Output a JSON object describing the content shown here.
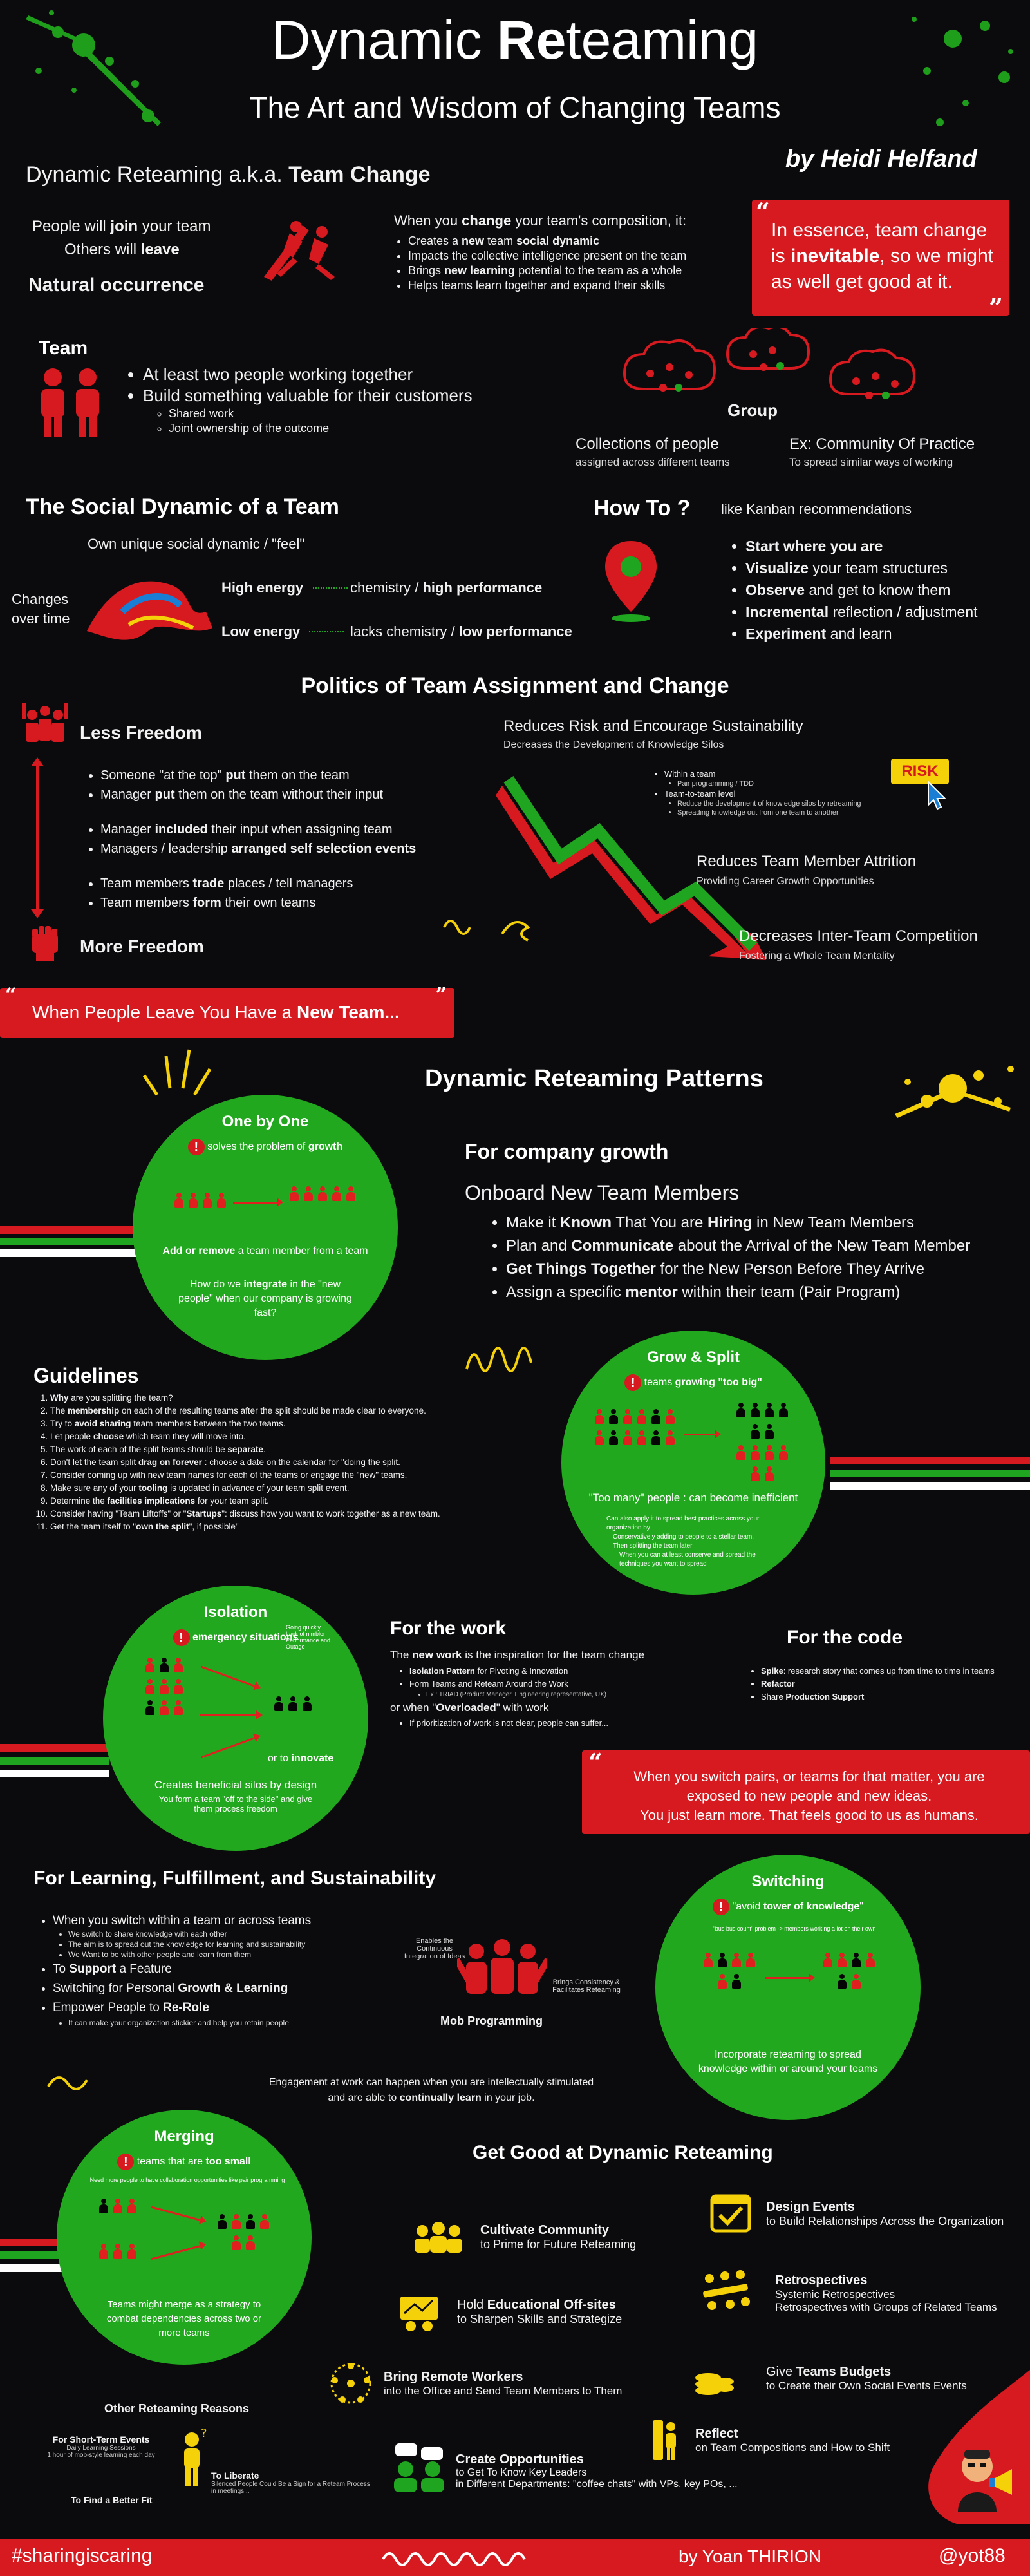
{
  "header": {
    "title_a": "Dynamic ",
    "title_b": "Re",
    "title_c": "teaming",
    "subtitle": "The Art and Wisdom of Changing Teams",
    "author": "by Heidi Helfand"
  },
  "intro": {
    "heading_a": "Dynamic Reteaming a.k.a. ",
    "heading_b": "Team Change",
    "join_a": "People will ",
    "join_b": "join",
    "join_c": " your team",
    "leave_a": "Others will ",
    "leave_b": "leave",
    "natural": "Natural occurrence",
    "when_a": "When you ",
    "when_b": "change",
    "when_c": " your team's composition, it:",
    "bullets": [
      {
        "a": "Creates a ",
        "b": "new",
        "c": " team ",
        "d": "social dynamic"
      },
      {
        "a": "Impacts the collective intelligence present on the team",
        "b": "",
        "c": "",
        "d": ""
      },
      {
        "a": "Brings ",
        "b": "new learning",
        "c": " potential to the team as a whole",
        "d": ""
      },
      {
        "a": "Helps teams learn together and expand their skills",
        "b": "",
        "c": "",
        "d": ""
      }
    ],
    "quote_a": "In essence, team change is ",
    "quote_b": "inevitable",
    "quote_c": ", so we might as well get good at it."
  },
  "team": {
    "title": "Team",
    "b1": "At least two people working together",
    "b2": "Build something valuable for their customers",
    "s1": "Shared work",
    "s2": "Joint ownership of the outcome",
    "group": "Group",
    "collections": "Collections of people",
    "collections_sub": "assigned across different teams",
    "community": "Ex: Community Of Practice",
    "community_sub": "To spread similar ways of working"
  },
  "social": {
    "title": "The Social Dynamic of a Team",
    "own": "Own unique social dynamic / \"feel\"",
    "changes": "Changes over time",
    "high": "High energy",
    "high_res_a": "chemistry / ",
    "high_res_b": "high performance",
    "low": "Low energy",
    "low_res_a": "lacks chemistry / ",
    "low_res_b": "low performance"
  },
  "howto": {
    "title": "How To ?",
    "like": "like Kanban recommendations",
    "items": [
      {
        "b": "Start",
        "r": " where you are",
        "bold_rest": true
      },
      {
        "b": "Visualize",
        "r": " your team structures"
      },
      {
        "b": "Observe",
        "r": " and get to know them"
      },
      {
        "b": "Incremental",
        "r": " reflection / adjustment"
      },
      {
        "b": "Experiment",
        "r": " and learn"
      }
    ]
  },
  "politics": {
    "title": "Politics of Team Assignment and Change",
    "less": "Less Freedom",
    "more": "More Freedom",
    "g1": [
      [
        "Someone \"at the top\" ",
        "put",
        " them on the team"
      ],
      [
        "Manager ",
        "put",
        " them on the team without their input"
      ]
    ],
    "g2": [
      [
        "Manager ",
        "included",
        " their input when assigning team"
      ],
      [
        "Managers / leadership ",
        "arranged self selection events",
        ""
      ]
    ],
    "g3": [
      [
        "Team members ",
        "trade",
        " places / tell managers"
      ],
      [
        "Team members ",
        "form",
        " their own teams"
      ]
    ],
    "risk_title": "Reduces Risk and Encourage Sustainability",
    "risk_sub": "Decreases the Development of Knowledge Silos",
    "within": "Within a team",
    "within_s": "Pair programming / TDD",
    "t2t": "Team-to-team level",
    "t2t_s1": "Reduce the development of knowledge silos by retreaming",
    "t2t_s2": "Spreading knowledge out from one team to another",
    "risk_badge": "RISK",
    "attr": "Reduces Team Member Attrition",
    "attr_s": "Providing Career Growth Opportunities",
    "comp": "Decreases Inter-Team Competition",
    "comp_s": "Fostering a Whole Team Mentality",
    "leave_a": "When People Leave You Have a ",
    "leave_b": "New Team..."
  },
  "patterns": {
    "title": "Dynamic Reteaming Patterns",
    "onebyone": {
      "title": "One by One",
      "warn_a": "solves the problem of ",
      "warn_b": "growth",
      "add_a": "Add or remove",
      "add_b": " a team member from a team",
      "q_a": "How do we ",
      "q_b": "integrate",
      "q_c": " in the \"new people\" when our company is growing fast?"
    },
    "growth": {
      "title": "For company growth",
      "sub": "Onboard New Team Members",
      "items": [
        [
          "Make it ",
          "Known",
          " That You are ",
          "Hiring",
          " in New Team Members"
        ],
        [
          "Plan and ",
          "Communicate",
          " about the Arrival of the New Team Member",
          "",
          ""
        ],
        [
          "",
          "Get Things Together",
          " for the New Person Before They Arrive",
          "",
          ""
        ],
        [
          "Assign a specific ",
          "mentor",
          " within their team (Pair Program)",
          "",
          ""
        ]
      ]
    },
    "guidelines": {
      "title": "Guidelines",
      "items": [
        [
          "",
          "Why",
          " are you splitting the team?"
        ],
        [
          "The ",
          "membership",
          " on each of the resulting teams after the split should be made clear to everyone."
        ],
        [
          "Try to ",
          "avoid sharing",
          " team members between the two teams."
        ],
        [
          "Let people ",
          "choose",
          " which team they will move into."
        ],
        [
          "The work of each of the split teams should be ",
          "separate",
          "."
        ],
        [
          "Don't let the team split ",
          "drag on forever",
          " : choose a date on the calendar for \"doing the split."
        ],
        [
          "Consider coming up with new team names for each of the teams or engage the \"new\" teams.",
          "",
          " "
        ],
        [
          "Make sure any of your ",
          "tooling",
          " is updated in advance of your team split event."
        ],
        [
          "Determine the ",
          "facilities implications",
          " for your team split."
        ],
        [
          "Consider having \"Team Liftoffs\" or \"",
          "Startups",
          "\": discuss how you want to work together as a new team."
        ],
        [
          "Get the team itself to \"",
          "own the split",
          "\", if possible\""
        ]
      ]
    },
    "grow": {
      "title": "Grow & Split",
      "warn_a": "teams ",
      "warn_b": "growing \"too big\"",
      "too_many": "\"Too many\" people : can become inefficient",
      "n1": "Can also apply it to spread best practices across your organization by",
      "n2": "Conservatively adding to people to a stellar team.",
      "n3": "Then splitting the team later",
      "n4": "When you can at least conserve and spread the techniques you want to spread"
    },
    "isolation": {
      "title": "Isolation",
      "warn": "emergency situations",
      "side": "Going quickly\nLack of nimbler\nPerformance and\nOutage",
      "or": "or to ",
      "innovate": "innovate",
      "desc": "Creates beneficial silos by design",
      "desc2": "You form a team \"off to the side\" and give them process freedom"
    },
    "work": {
      "title": "For the work",
      "intro_a": "The ",
      "intro_b": "new work",
      " intro_c": "",
      "intro_rest": " is the inspiration for the team change",
      "b1a": "Isolation Pattern",
      "b1b": " for Pivoting & Innovation",
      "b2": "Form Teams and Reteam Around the Work",
      "b2s": "Ex : TRIAD (Product Manager, Engineering representative, UX)",
      "or_a": "or when \"",
      "or_b": "Overloaded",
      "or_c": "\" with work",
      "b3": "If prioritization of work is not clear, people can suffer..."
    },
    "code": {
      "title": "For the code",
      "b1a": "Spike",
      "b1b": ": research story that comes up from time to time in teams",
      "b2": "Refactor",
      "b3a": "Share ",
      "b3b": "Production Support"
    },
    "quote2_a": "When you switch pairs, or teams for that matter, you are exposed to new people and new ideas.",
    "quote2_b": "You just learn more. That feels good to us as humans.",
    "learning": {
      "title": "For Learning, Fulfillment, and Sustainability",
      "b1": "When you switch within a team or across teams",
      "b1s": [
        "We switch to share knowledge with each other",
        "The aim is to spread out the knowledge for learning and sustainability",
        "We Want to be with other people and learn from them"
      ],
      "b2a": "To ",
      "b2b": "Support",
      " b2c": "",
      "b2rest": " a Feature",
      "b3a": "Switching for Personal ",
      "b3b": "Growth & Learning",
      "b4a": "Empower People to ",
      "b4b": "Re-Role",
      "b4s": "It can make your organization stickier and help you retain people",
      "mob_left": "Enables the Continuous Integration of Ideas",
      "mob_right": "Brings Consistency & Facilitates Reteaming",
      "mob": "Mob Programming",
      "engage_a": "Engagement at work can happen when you are intellectually stimulated",
      "engage_b": "and are able to ",
      "engage_c": "continually learn",
      " engage_d": "",
      "engage_e": " in your job."
    },
    "switching": {
      "title": "Switching",
      "warn_a": "\"avoid ",
      "warn_b": "tower of knowledge",
      "warn_c": "\"",
      "sub": "\"bus bus count\" problem -> members working a lot on their own",
      "desc": "Incorporate reteaming to spread knowledge within or around your teams"
    },
    "merging": {
      "title": "Merging",
      "warn_a": "teams that are ",
      "warn_b": "too small",
      "sub": "Need more people to have collaboration opportunities like pair programming",
      "desc": "Teams might merge as a strategy to combat dependencies across two or more teams"
    },
    "other": {
      "title": "Other Reteaming Reasons",
      "short": "For Short-Term Events",
      "short_s1": "Daily Learning Sessions",
      "short_s2": "1 hour of mob-style learning each day",
      "liberate": "To Liberate",
      "liberate_s": "Silenced People Could Be a Sign for a Reteam Process in meetings...",
      "fit": "To Find a Better Fit"
    }
  },
  "getgood": {
    "title": "Get Good at Dynamic Reteaming",
    "community_a": "Cultivate Community",
    "community_b": "to Prime for Future Reteaming",
    "offsite_a": "Hold ",
    "offsite_b": "Educational Off-sites",
    "offsite_c": "to Sharpen Skills and Strategize",
    "remote_a": "Bring Remote Workers",
    "remote_b": "into the Office and Send Team Members to Them",
    "opps_a": "Create Opportunities",
    "opps_b": "to Get To Know Key Leaders",
    "opps_c": "in Different Departments: \"coffee chats\" with VPs, key POs, ...",
    "design_a": "Design Events",
    "design_b": "to Build Relationships Across the Organization",
    "retro_a": "Retrospectives",
    "retro_b": "Systemic Retrospectives",
    "retro_c": "Retrospectives with Groups of Related Teams",
    "budget_a": "Give ",
    "budget_b": "Teams Budgets",
    "budget_c": "to Create their Own Social Events Events",
    "reflect_a": "Reflect",
    "reflect_b": "on Team Compositions and How to Shift"
  },
  "footer": {
    "tag": "#sharingiscaring",
    "by": "by Yoan THIRION",
    "handle": "@yot88"
  },
  "colors": {
    "accent": "#d71920",
    "green": "#22a81e",
    "bg": "#0b0b0d",
    "yellow": "#f5d10a"
  }
}
